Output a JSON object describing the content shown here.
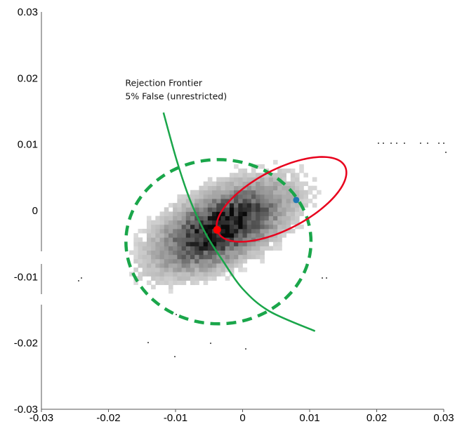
{
  "chart_data": {
    "type": "scatter",
    "title": "",
    "xlabel": "",
    "ylabel": "",
    "xlim": [
      -0.03,
      0.03
    ],
    "ylim": [
      -0.03,
      0.03
    ],
    "x_ticks": [
      "-0.03",
      "-0.02",
      "-0.01",
      "0",
      "0.01",
      "0.02",
      "0.03"
    ],
    "y_ticks": [
      "0.03",
      "0.02",
      "0.01",
      "0",
      "-0.01",
      "-0.02",
      "-0.03"
    ],
    "grid": false,
    "density_histogram": {
      "center": [
        -0.0035,
        -0.0028
      ],
      "spread_x": 0.0062,
      "spread_y": 0.0042,
      "correlation": 0.55,
      "color": "#000000"
    },
    "annotations": [
      {
        "name": "frontier_label_line1",
        "text": "Rejection Frontier",
        "x": -0.0175,
        "y": 0.0188
      },
      {
        "name": "frontier_label_line2",
        "text": "5% False (unrestricted)",
        "x": -0.0175,
        "y": 0.0168
      }
    ],
    "points": [
      {
        "name": "red-center-point",
        "x": -0.0038,
        "y": -0.0029,
        "color": "#ff0000"
      },
      {
        "name": "blue-point",
        "x": 0.008,
        "y": 0.0016,
        "color": "#1f77b4"
      }
    ],
    "curves": {
      "frontier": {
        "color": "#1aa64a",
        "points": [
          [
            -0.0118,
            0.0148
          ],
          [
            -0.0098,
            0.0075
          ],
          [
            -0.0078,
            0.0015
          ],
          [
            -0.0055,
            -0.0035
          ],
          [
            -0.003,
            -0.0075
          ],
          [
            0.0,
            -0.0118
          ],
          [
            0.004,
            -0.0152
          ],
          [
            0.0108,
            -0.0182
          ]
        ]
      },
      "dashed_circle": {
        "color": "#1aa64a",
        "cx": -0.0036,
        "cy": -0.0047,
        "rx": 0.0138,
        "ry": 0.0124
      },
      "red_ellipse": {
        "color": "#e8001c",
        "cx": 0.0058,
        "cy": 0.0017,
        "rx": 0.0107,
        "ry": 0.0045,
        "angle_deg": -28
      }
    }
  }
}
